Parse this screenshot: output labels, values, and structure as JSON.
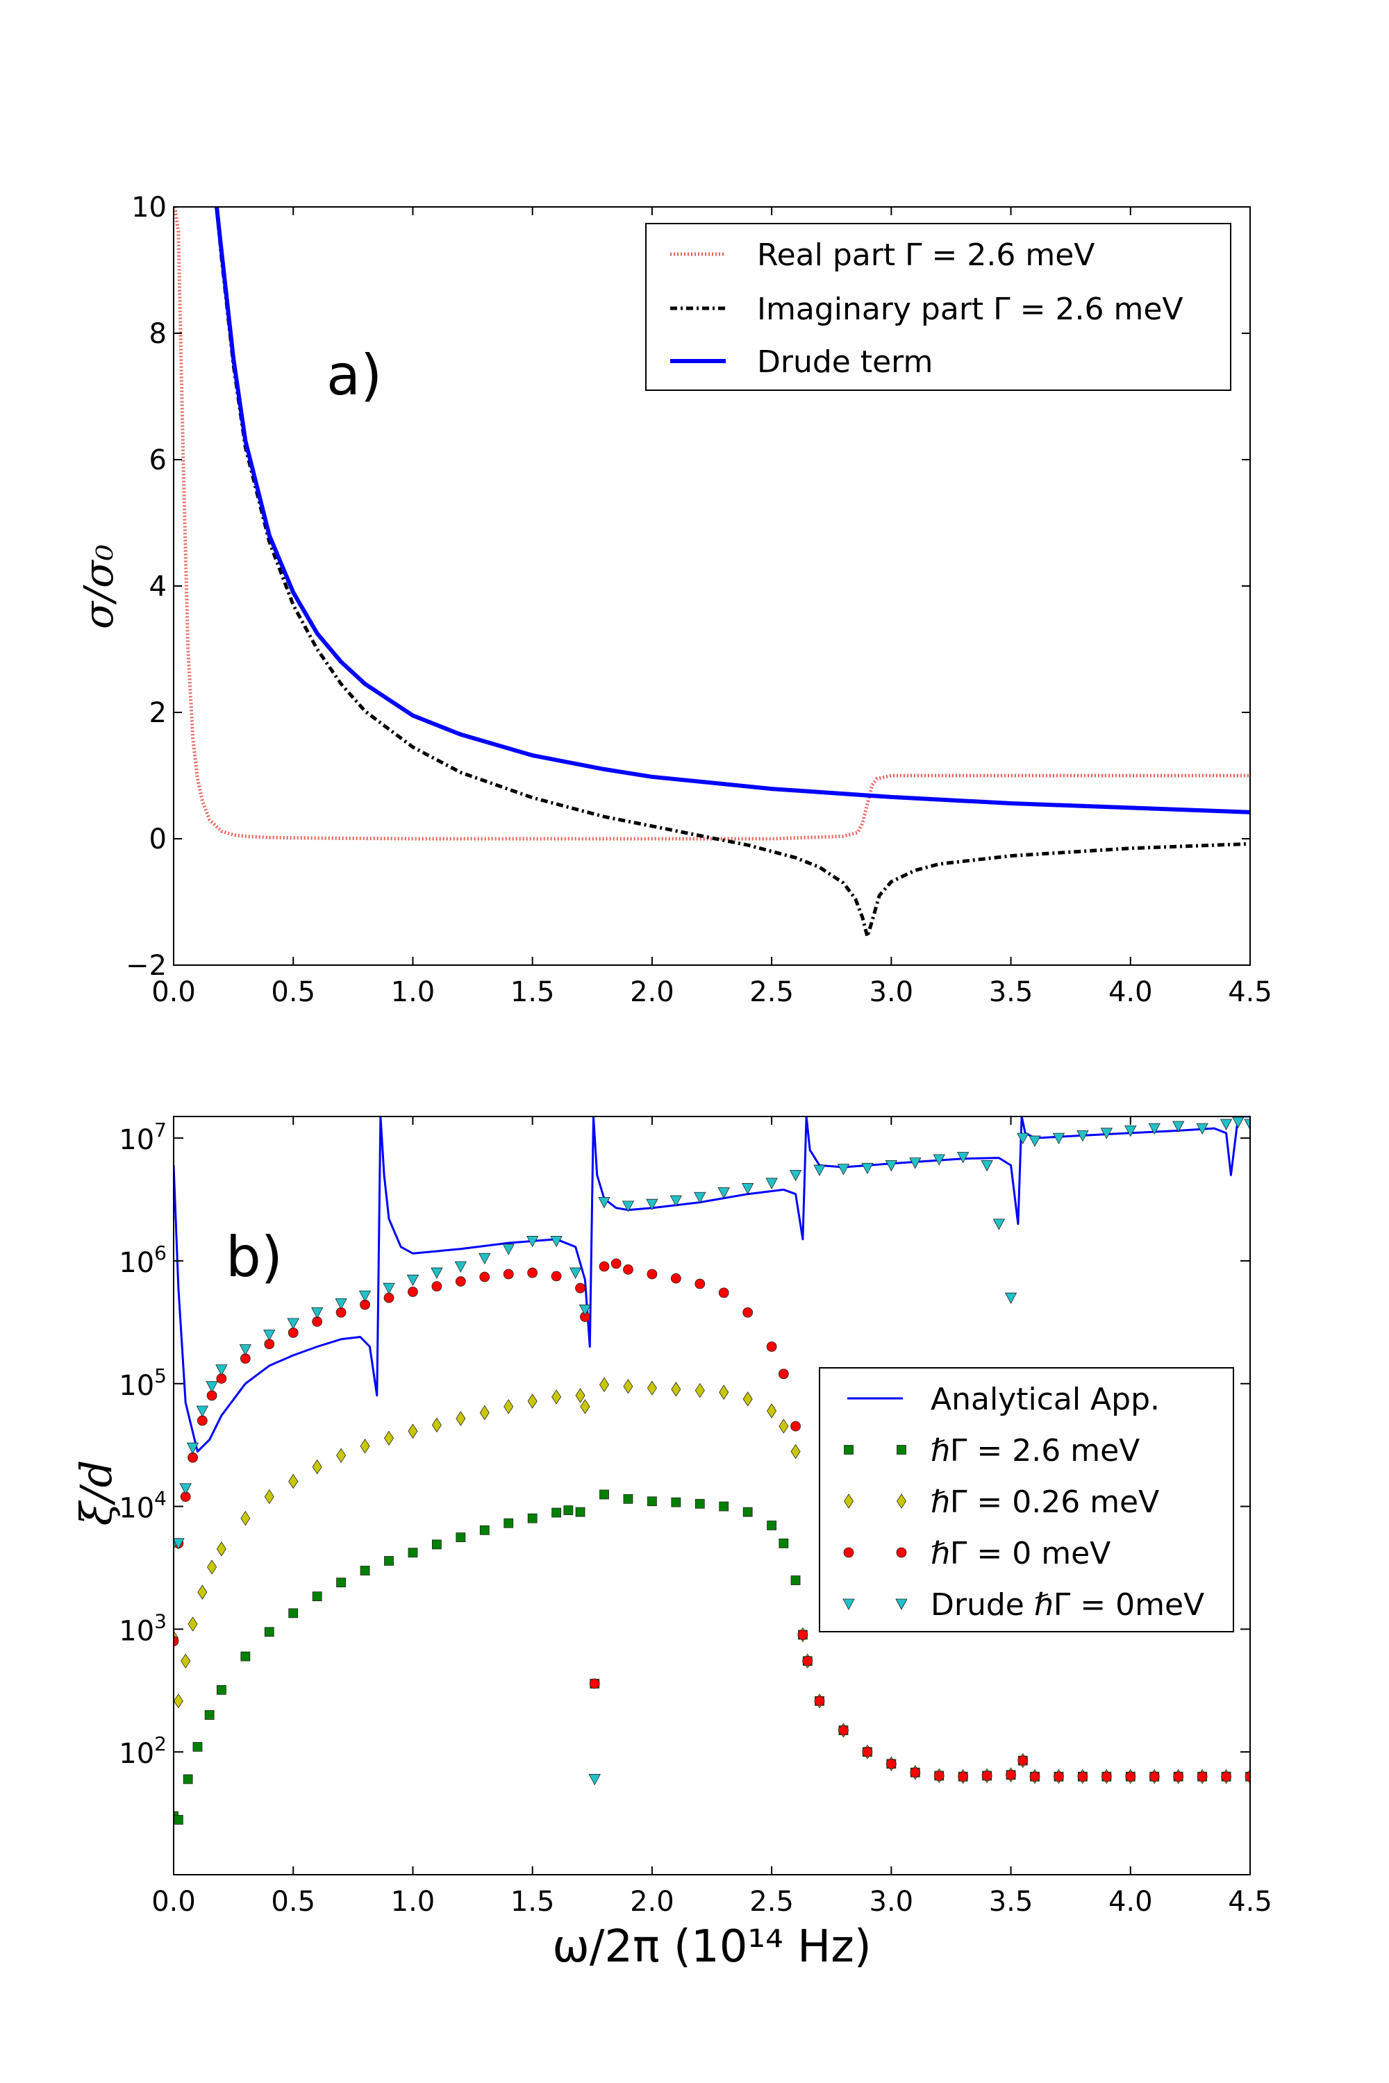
{
  "chart_data": [
    {
      "type": "line",
      "panel_label": "a)",
      "ylabel": "σ/σ₀",
      "xlim": [
        0.0,
        4.5
      ],
      "ylim": [
        -2,
        10
      ],
      "x_ticks": [
        "0.0",
        "0.5",
        "1.0",
        "1.5",
        "2.0",
        "2.5",
        "3.0",
        "3.5",
        "4.0",
        "4.5"
      ],
      "y_ticks": [
        "−2",
        "0",
        "2",
        "4",
        "6",
        "8",
        "10"
      ],
      "legend_position": "top-right",
      "series": [
        {
          "name": "Real part Γ = 2.6 meV",
          "color": "#e8605a",
          "style": "dotted",
          "x": [
            0.005,
            0.02,
            0.04,
            0.06,
            0.08,
            0.1,
            0.12,
            0.15,
            0.2,
            0.25,
            0.3,
            0.4,
            0.6,
            1.0,
            1.5,
            2.0,
            2.5,
            2.8,
            2.86,
            2.88,
            2.9,
            2.92,
            2.94,
            3.0,
            3.5,
            4.0,
            4.5
          ],
          "y": [
            10,
            9.6,
            6.0,
            3.0,
            1.6,
            0.95,
            0.6,
            0.3,
            0.12,
            0.06,
            0.04,
            0.02,
            0.01,
            0.0,
            0.0,
            0.0,
            0.0,
            0.04,
            0.1,
            0.25,
            0.55,
            0.85,
            0.95,
            1.0,
            1.0,
            1.0,
            1.0
          ]
        },
        {
          "name": "Imaginary part Γ = 2.6 meV",
          "color": "#000000",
          "style": "dashdot",
          "x": [
            0.18,
            0.2,
            0.25,
            0.3,
            0.4,
            0.5,
            0.6,
            0.7,
            0.8,
            1.0,
            1.2,
            1.5,
            1.8,
            2.0,
            2.2,
            2.4,
            2.6,
            2.7,
            2.8,
            2.85,
            2.88,
            2.9,
            2.92,
            2.95,
            3.0,
            3.1,
            3.2,
            3.5,
            4.0,
            4.5
          ],
          "y": [
            10,
            9.2,
            7.5,
            6.2,
            4.7,
            3.7,
            3.0,
            2.45,
            2.02,
            1.45,
            1.05,
            0.65,
            0.35,
            0.2,
            0.05,
            -0.1,
            -0.3,
            -0.45,
            -0.7,
            -0.95,
            -1.25,
            -1.55,
            -1.3,
            -0.9,
            -0.68,
            -0.5,
            -0.4,
            -0.27,
            -0.15,
            -0.08
          ]
        },
        {
          "name": "Drude term",
          "color": "#0000ff",
          "style": "solid",
          "x": [
            0.18,
            0.2,
            0.25,
            0.3,
            0.4,
            0.5,
            0.6,
            0.7,
            0.8,
            1.0,
            1.2,
            1.5,
            1.8,
            2.0,
            2.5,
            3.0,
            3.5,
            4.0,
            4.5
          ],
          "y": [
            10,
            9.3,
            7.6,
            6.3,
            4.8,
            3.9,
            3.25,
            2.8,
            2.45,
            1.95,
            1.65,
            1.32,
            1.1,
            0.98,
            0.79,
            0.66,
            0.56,
            0.49,
            0.42
          ]
        }
      ]
    },
    {
      "type": "scatter",
      "panel_label": "b)",
      "xlabel": "ω/2π (10¹⁴ Hz)",
      "ylabel": "ξ/d",
      "yscale": "log",
      "xlim": [
        0.0,
        4.5
      ],
      "ylim": [
        10,
        15000000
      ],
      "x_ticks": [
        "0.0",
        "0.5",
        "1.0",
        "1.5",
        "2.0",
        "2.5",
        "3.0",
        "3.5",
        "4.0",
        "4.5"
      ],
      "y_ticks": [
        {
          "base": "10",
          "exp": "2",
          "value": 100
        },
        {
          "base": "10",
          "exp": "3",
          "value": 1000
        },
        {
          "base": "10",
          "exp": "4",
          "value": 10000
        },
        {
          "base": "10",
          "exp": "5",
          "value": 100000
        },
        {
          "base": "10",
          "exp": "6",
          "value": 1000000
        },
        {
          "base": "10",
          "exp": "7",
          "value": 10000000
        }
      ],
      "legend_position": "center-right",
      "series": [
        {
          "name": "Analytical App.",
          "marker": "line",
          "color": "#0000ff",
          "x": [
            0.0,
            0.02,
            0.05,
            0.1,
            0.15,
            0.2,
            0.3,
            0.4,
            0.5,
            0.6,
            0.7,
            0.78,
            0.82,
            0.85,
            0.865,
            0.88,
            0.9,
            0.95,
            1.0,
            1.2,
            1.4,
            1.6,
            1.68,
            1.72,
            1.74,
            1.755,
            1.77,
            1.8,
            1.85,
            1.9,
            2.0,
            2.2,
            2.4,
            2.55,
            2.6,
            2.63,
            2.645,
            2.66,
            2.7,
            2.8,
            3.0,
            3.3,
            3.45,
            3.5,
            3.53,
            3.545,
            3.56,
            3.6,
            3.8,
            4.0,
            4.2,
            4.35,
            4.4,
            4.42,
            4.45,
            4.5
          ],
          "y": [
            6000000,
            600000,
            70000,
            28000,
            35000,
            55000,
            100000,
            140000,
            170000,
            200000,
            230000,
            240000,
            200000,
            80000,
            15000000,
            5000000,
            2200000,
            1300000,
            1150000,
            1250000,
            1400000,
            1500000,
            1300000,
            700000,
            200000,
            15000000,
            5000000,
            3200000,
            2700000,
            2600000,
            2700000,
            3000000,
            3500000,
            3800000,
            3500000,
            1500000,
            15000000,
            8000000,
            6000000,
            5800000,
            6200000,
            6800000,
            6900000,
            6000000,
            2000000,
            15000000,
            11000000,
            10000000,
            10500000,
            11000000,
            11500000,
            12000000,
            11000000,
            5000000,
            15000000,
            15000000
          ]
        },
        {
          "name": "ℏΓ = 2.6 meV",
          "marker": "square",
          "color": "#008000",
          "x": [
            0.0,
            0.02,
            0.06,
            0.1,
            0.15,
            0.2,
            0.3,
            0.4,
            0.5,
            0.6,
            0.7,
            0.8,
            0.9,
            1.0,
            1.1,
            1.2,
            1.3,
            1.4,
            1.5,
            1.6,
            1.65,
            1.7,
            1.76,
            1.8,
            1.9,
            2.0,
            2.1,
            2.2,
            2.3,
            2.4,
            2.5,
            2.55,
            2.6,
            2.63,
            2.65,
            2.7,
            2.8,
            2.9,
            3.0,
            3.1,
            3.2,
            3.3,
            3.4,
            3.5,
            3.55,
            3.6,
            3.7,
            3.8,
            3.9,
            4.0,
            4.1,
            4.2,
            4.3,
            4.4,
            4.5
          ],
          "y": [
            30,
            28,
            60,
            110,
            200,
            320,
            600,
            950,
            1350,
            1850,
            2400,
            3000,
            3600,
            4200,
            4900,
            5600,
            6400,
            7300,
            8000,
            8900,
            9300,
            9000,
            360,
            12500,
            11500,
            11000,
            10800,
            10500,
            10000,
            9000,
            7000,
            5000,
            2500,
            900,
            550,
            260,
            150,
            100,
            80,
            68,
            64,
            63,
            64,
            65,
            85,
            63,
            63,
            63,
            63,
            63,
            63,
            63,
            63,
            63,
            63
          ]
        },
        {
          "name": "ℏΓ = 0.26 meV",
          "marker": "diamond",
          "color": "#c8c800",
          "x": [
            0.0,
            0.02,
            0.05,
            0.08,
            0.12,
            0.16,
            0.2,
            0.3,
            0.4,
            0.5,
            0.6,
            0.7,
            0.8,
            0.9,
            1.0,
            1.1,
            1.2,
            1.3,
            1.4,
            1.5,
            1.6,
            1.7,
            1.72,
            1.8,
            1.9,
            2.0,
            2.1,
            2.2,
            2.3,
            2.4,
            2.5,
            2.55,
            2.6,
            2.63,
            2.65,
            2.7,
            2.8,
            2.9,
            3.0,
            3.1,
            3.2,
            3.3,
            3.4,
            3.5,
            3.55,
            3.6,
            3.7,
            3.8,
            3.9,
            4.0,
            4.1,
            4.2,
            4.3,
            4.4,
            4.5
          ],
          "y": [
            850,
            260,
            550,
            1100,
            2000,
            3200,
            4500,
            8000,
            12000,
            16000,
            21000,
            26000,
            31000,
            36000,
            41000,
            46000,
            52000,
            58000,
            65000,
            72000,
            78000,
            80000,
            65000,
            98000,
            95000,
            92000,
            90000,
            88000,
            85000,
            75000,
            60000,
            45000,
            28000,
            900,
            550,
            260,
            150,
            100,
            80,
            68,
            64,
            63,
            64,
            65,
            85,
            63,
            63,
            63,
            63,
            63,
            63,
            63,
            63,
            63,
            63
          ]
        },
        {
          "name": "ℏΓ = 0 meV",
          "marker": "circle",
          "color": "#ff0000",
          "x": [
            0.0,
            0.02,
            0.05,
            0.08,
            0.12,
            0.16,
            0.2,
            0.3,
            0.4,
            0.5,
            0.6,
            0.7,
            0.8,
            0.9,
            1.0,
            1.1,
            1.2,
            1.3,
            1.4,
            1.5,
            1.6,
            1.7,
            1.72,
            1.76,
            1.8,
            1.85,
            1.9,
            2.0,
            2.1,
            2.2,
            2.3,
            2.4,
            2.5,
            2.55,
            2.6,
            2.63,
            2.65,
            2.7,
            2.8,
            2.9,
            3.0,
            3.1,
            3.2,
            3.3,
            3.4,
            3.5,
            3.55,
            3.6,
            3.7,
            3.8,
            3.9,
            4.0,
            4.1,
            4.2,
            4.3,
            4.4,
            4.5
          ],
          "y": [
            800,
            5000,
            12000,
            25000,
            50000,
            80000,
            110000,
            160000,
            210000,
            260000,
            320000,
            380000,
            440000,
            500000,
            560000,
            620000,
            680000,
            740000,
            780000,
            800000,
            750000,
            600000,
            350000,
            360,
            900000,
            950000,
            850000,
            780000,
            720000,
            650000,
            550000,
            380000,
            200000,
            120000,
            45000,
            900,
            550,
            260,
            150,
            100,
            80,
            68,
            64,
            63,
            64,
            65,
            85,
            63,
            63,
            63,
            63,
            63,
            63,
            63,
            63,
            63,
            63
          ]
        },
        {
          "name": "Drude ℏΓ = 0meV",
          "marker": "triangle",
          "color": "#22c1c9",
          "x": [
            0.0,
            0.02,
            0.05,
            0.08,
            0.12,
            0.16,
            0.2,
            0.3,
            0.4,
            0.5,
            0.6,
            0.7,
            0.8,
            0.9,
            1.0,
            1.1,
            1.2,
            1.3,
            1.4,
            1.5,
            1.6,
            1.68,
            1.72,
            1.76,
            1.8,
            1.9,
            2.0,
            2.1,
            2.2,
            2.3,
            2.4,
            2.5,
            2.6,
            2.7,
            2.8,
            2.9,
            3.0,
            3.1,
            3.2,
            3.3,
            3.4,
            3.45,
            3.5,
            3.55,
            3.6,
            3.7,
            3.8,
            3.9,
            4.0,
            4.1,
            4.2,
            4.3,
            4.4,
            4.45,
            4.5
          ],
          "y": [
            5000,
            5000,
            14000,
            30000,
            60000,
            95000,
            130000,
            190000,
            250000,
            310000,
            380000,
            450000,
            520000,
            600000,
            700000,
            800000,
            900000,
            1050000,
            1250000,
            1450000,
            1450000,
            800000,
            400000,
            60,
            3000000,
            2800000,
            2900000,
            3100000,
            3300000,
            3600000,
            3900000,
            4300000,
            5000000,
            5500000,
            5600000,
            5700000,
            6000000,
            6300000,
            6700000,
            7000000,
            6000000,
            2000000,
            500000,
            10000000,
            9500000,
            10000000,
            10500000,
            11000000,
            11500000,
            12000000,
            12500000,
            12000000,
            13000000,
            13500000,
            13000000
          ]
        }
      ]
    }
  ]
}
